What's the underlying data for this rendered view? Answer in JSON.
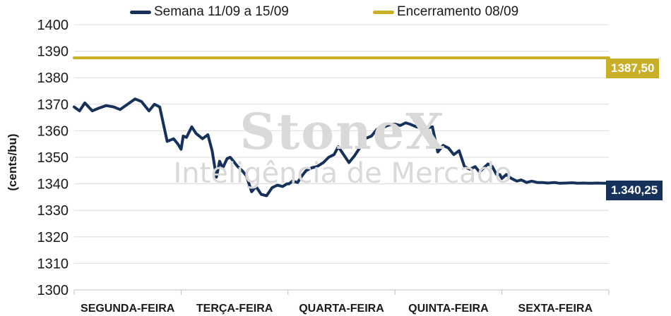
{
  "chart_data": {
    "type": "line",
    "ylabel": "(cents/bu)",
    "ylim": [
      1300,
      1400
    ],
    "yticks": [
      1300,
      1310,
      1320,
      1330,
      1340,
      1350,
      1360,
      1370,
      1380,
      1390,
      1400
    ],
    "xlim": [
      0,
      5
    ],
    "categories": [
      "SEGUNDA-FEIRA",
      "TERÇA-FEIRA",
      "QUARTA-FEIRA",
      "QUINTA-FEIRA",
      "SEXTA-FEIRA"
    ],
    "grid": "horizontal",
    "legend": "top",
    "series": [
      {
        "name": "Semana 11/09 a 15/09",
        "color": "#16315a",
        "end_label": "1.340,25",
        "x": [
          0,
          0.05,
          0.1,
          0.17,
          0.23,
          0.3,
          0.37,
          0.43,
          0.5,
          0.57,
          0.63,
          0.67,
          0.7,
          0.75,
          0.8,
          0.87,
          0.93,
          0.97,
          1.0,
          1.02,
          1.05,
          1.1,
          1.14,
          1.2,
          1.25,
          1.29,
          1.33,
          1.36,
          1.39,
          1.43,
          1.46,
          1.5,
          1.53,
          1.57,
          1.61,
          1.66,
          1.7,
          1.75,
          1.8,
          1.85,
          1.9,
          1.95,
          1.99,
          2.01,
          2.04,
          2.09,
          2.13,
          2.17,
          2.22,
          2.27,
          2.33,
          2.38,
          2.43,
          2.47,
          2.52,
          2.57,
          2.62,
          2.67,
          2.72,
          2.78,
          2.83,
          2.88,
          2.93,
          2.98,
          3.0,
          3.05,
          3.1,
          3.14,
          3.2,
          3.25,
          3.3,
          3.35,
          3.4,
          3.45,
          3.5,
          3.55,
          3.6,
          3.65,
          3.7,
          3.75,
          3.79,
          3.83,
          3.87,
          3.91,
          3.95,
          3.98,
          4.0,
          4.04,
          4.09,
          4.14,
          4.18,
          4.23,
          4.28,
          4.33,
          4.38,
          4.43,
          4.49,
          4.54,
          4.6,
          4.66,
          4.71,
          4.76,
          4.8,
          4.84,
          4.89,
          4.94,
          4.99
        ],
        "y": [
          1369,
          1367.5,
          1370.5,
          1367.5,
          1368.5,
          1369.5,
          1369,
          1368,
          1370,
          1372,
          1371,
          1369,
          1367.5,
          1370,
          1369,
          1356,
          1357,
          1355,
          1353,
          1358,
          1357.5,
          1361.5,
          1359,
          1357,
          1358.5,
          1352.5,
          1342.5,
          1348.5,
          1346,
          1349.5,
          1350,
          1348,
          1346.5,
          1345,
          1343,
          1337,
          1339,
          1336,
          1335.5,
          1338.5,
          1339.5,
          1339,
          1340,
          1340,
          1341,
          1340.5,
          1343,
          1345,
          1346,
          1346.5,
          1348,
          1350,
          1351,
          1354,
          1351,
          1348,
          1350.5,
          1353.5,
          1357,
          1358,
          1360.5,
          1361,
          1362,
          1362.5,
          1362.5,
          1362,
          1363,
          1362.5,
          1361.5,
          1361,
          1361,
          1361.5,
          1352,
          1354.5,
          1353.5,
          1351,
          1352.5,
          1346.5,
          1345.5,
          1346.5,
          1344.5,
          1346,
          1347.5,
          1346.5,
          1343.5,
          1343.5,
          1342,
          1343.5,
          1342,
          1341,
          1341.5,
          1340.5,
          1341,
          1340.5,
          1340.5,
          1340.3,
          1340.5,
          1340.2,
          1340.3,
          1340.4,
          1340.2,
          1340.3,
          1340.2,
          1340.25,
          1340.3,
          1340.2,
          1340.25
        ]
      },
      {
        "name": "Encerramento 08/09",
        "color": "#c9ae28",
        "end_label": "1387,50",
        "x": [
          0,
          5
        ],
        "y": [
          1387.5,
          1387.5
        ]
      }
    ],
    "watermark": {
      "logo": "StoneX",
      "text": "Inteligência de Mercado"
    }
  }
}
